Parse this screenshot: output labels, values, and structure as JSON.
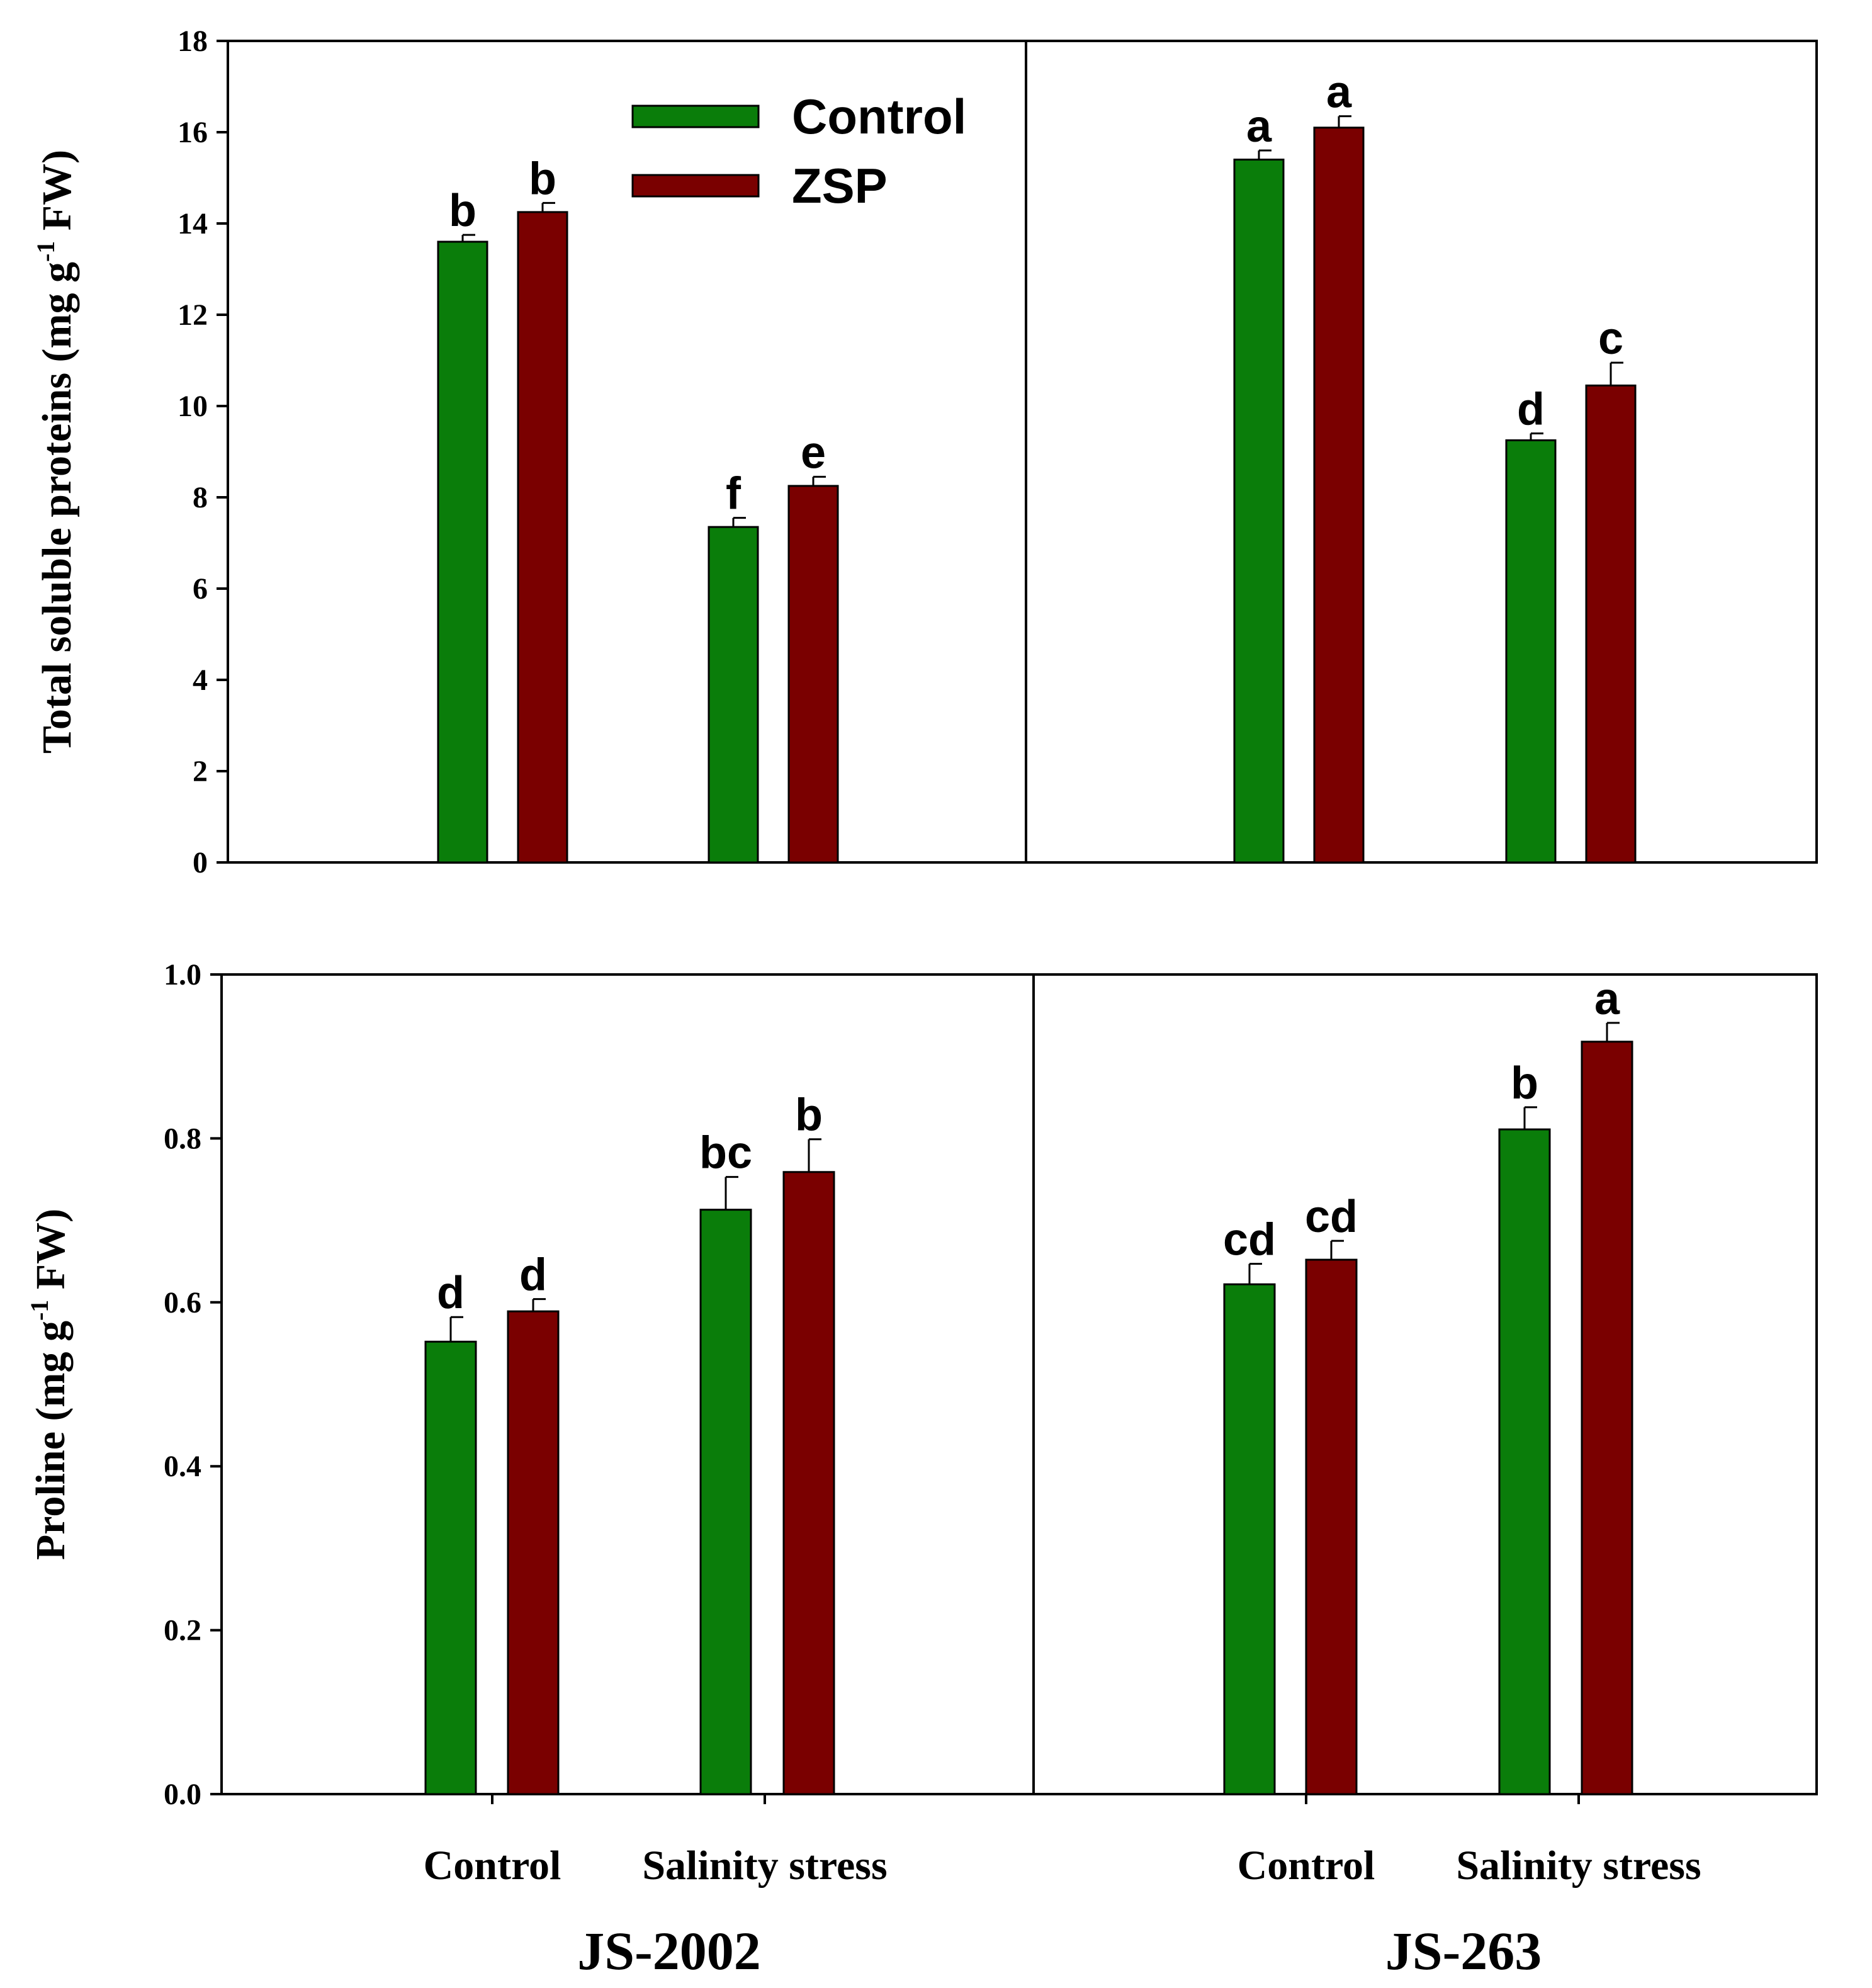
{
  "colors": {
    "control": "#0a7d0a",
    "zsp": "#7a0000",
    "axis": "#000000"
  },
  "legend": {
    "placement": "top-left of upper panel",
    "items": [
      "Control",
      "ZSP"
    ]
  },
  "x_categories": [
    "Control",
    "Salinity stress"
  ],
  "groups": [
    "JS-2002",
    "JS-263"
  ],
  "chart_data": [
    {
      "type": "bar",
      "ylabel": {
        "main": "Total soluble proteins (mg g",
        "sup": "-1",
        "unit": " FW)"
      },
      "ylim": [
        0,
        18
      ],
      "yticks": [
        0,
        2,
        4,
        6,
        8,
        10,
        12,
        14,
        16,
        18
      ],
      "ytick_labels": [
        "0",
        "2",
        "4",
        "6",
        "8",
        "10",
        "12",
        "14",
        "16",
        "18"
      ],
      "groups": [
        "JS-2002",
        "JS-263"
      ],
      "categories": [
        "Control",
        "Salinity stress"
      ],
      "series": [
        {
          "name": "Control",
          "values": [
            [
              13.6,
              7.35
            ],
            [
              15.4,
              9.25
            ]
          ],
          "errors": [
            [
              0.15,
              0.2
            ],
            [
              0.2,
              0.15
            ]
          ],
          "letters": [
            [
              "b",
              "f"
            ],
            [
              "a",
              "d"
            ]
          ]
        },
        {
          "name": "ZSP",
          "values": [
            [
              14.25,
              8.25
            ],
            [
              16.1,
              10.45
            ]
          ],
          "errors": [
            [
              0.2,
              0.2
            ],
            [
              0.25,
              0.5
            ]
          ],
          "letters": [
            [
              "b",
              "e"
            ],
            [
              "a",
              "c"
            ]
          ]
        }
      ]
    },
    {
      "type": "bar",
      "ylabel": {
        "main": "Proline  (mg g",
        "sup": "-1",
        "unit": " FW)"
      },
      "ylim": [
        0,
        1.0
      ],
      "yticks": [
        0,
        0.2,
        0.4,
        0.6,
        0.8,
        1.0
      ],
      "ytick_labels": [
        "0.0",
        "0.2",
        "0.4",
        "0.6",
        "0.8",
        "1.0"
      ],
      "groups": [
        "JS-2002",
        "JS-263"
      ],
      "categories": [
        "Control",
        "Salinity stress"
      ],
      "series": [
        {
          "name": "Control",
          "values": [
            [
              0.552,
              0.713
            ],
            [
              0.622,
              0.811
            ]
          ],
          "errors": [
            [
              0.03,
              0.04
            ],
            [
              0.025,
              0.027
            ]
          ],
          "letters": [
            [
              "d",
              "bc"
            ],
            [
              "cd",
              "b"
            ]
          ]
        },
        {
          "name": "ZSP",
          "values": [
            [
              0.589,
              0.759
            ],
            [
              0.652,
              0.918
            ]
          ],
          "errors": [
            [
              0.015,
              0.04
            ],
            [
              0.023,
              0.023
            ]
          ],
          "letters": [
            [
              "d",
              "b"
            ],
            [
              "cd",
              "a"
            ]
          ]
        }
      ]
    }
  ]
}
